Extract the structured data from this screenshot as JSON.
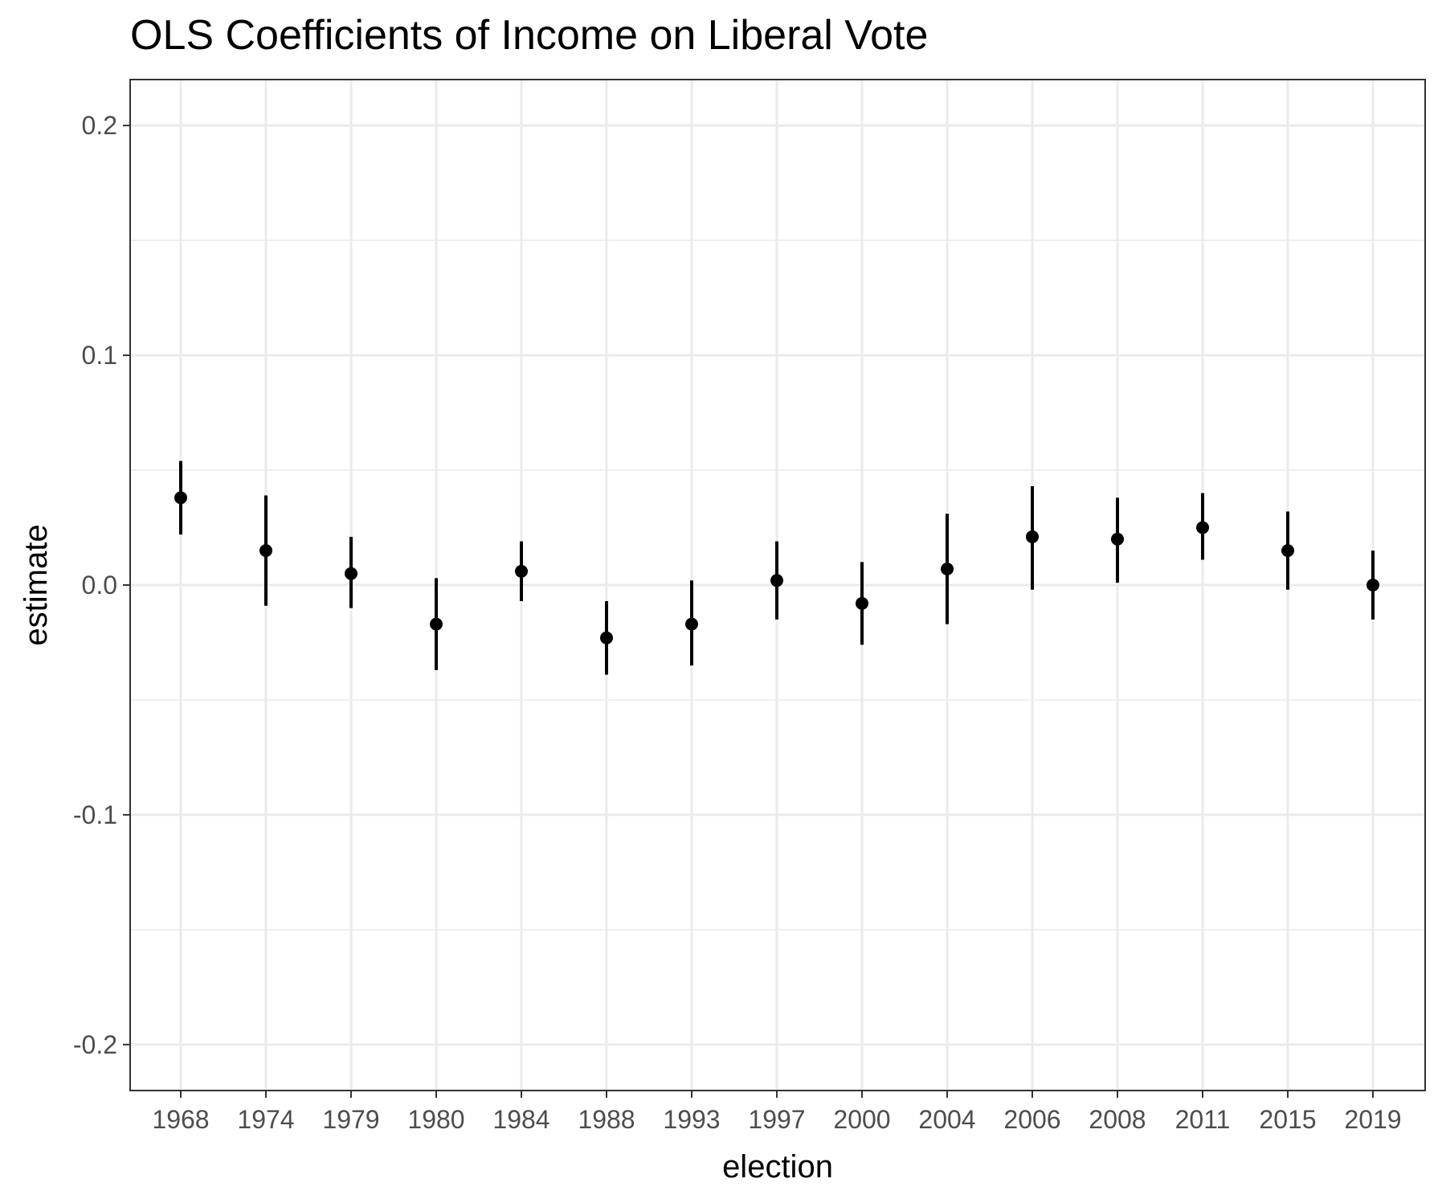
{
  "chart_data": {
    "type": "scatter",
    "title": "OLS Coefficients of Income on Liberal Vote",
    "xlabel": "election",
    "ylabel": "estimate",
    "ylim": [
      -0.22,
      0.22
    ],
    "y_ticks": [
      "-0.2",
      "-0.1",
      "0.0",
      "0.1",
      "0.2"
    ],
    "y_tick_values": [
      -0.2,
      -0.1,
      0.0,
      0.1,
      0.2
    ],
    "grid": true,
    "categories": [
      "1968",
      "1974",
      "1979",
      "1980",
      "1984",
      "1988",
      "1993",
      "1997",
      "2000",
      "2004",
      "2006",
      "2008",
      "2011",
      "2015",
      "2019"
    ],
    "estimate": [
      0.038,
      0.015,
      0.005,
      -0.017,
      0.006,
      -0.023,
      -0.017,
      0.002,
      -0.008,
      0.007,
      0.021,
      0.02,
      0.025,
      0.015,
      0.0
    ],
    "lower": [
      0.022,
      -0.009,
      -0.01,
      -0.037,
      -0.007,
      -0.039,
      -0.035,
      -0.015,
      -0.026,
      -0.017,
      -0.002,
      0.001,
      0.011,
      -0.002,
      -0.015
    ],
    "upper": [
      0.054,
      0.039,
      0.021,
      0.003,
      0.019,
      -0.007,
      0.002,
      0.019,
      0.01,
      0.031,
      0.043,
      0.038,
      0.04,
      0.032,
      0.015
    ],
    "colors": {
      "point": "#000000",
      "grid": "#ebebeb",
      "panel_border": "#333333",
      "tick_label": "#4d4d4d"
    }
  }
}
